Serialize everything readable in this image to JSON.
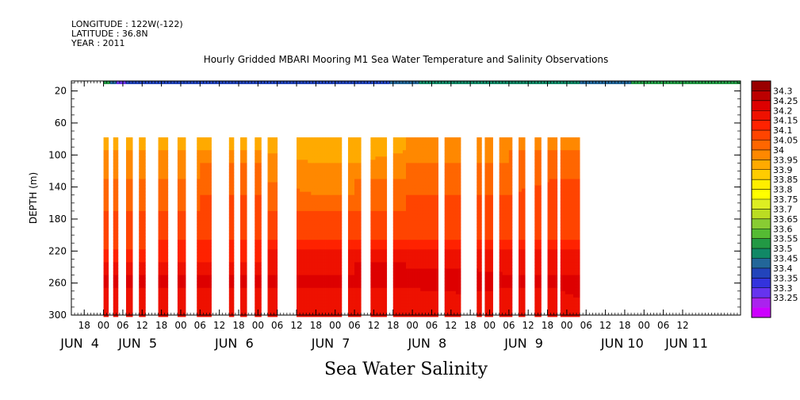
{
  "header": {
    "longitude": "LONGITUDE : 122W(-122)",
    "latitude": "LATITUDE : 36.8N",
    "year": "YEAR : 2011"
  },
  "title": "Hourly Gridded MBARI Mooring M1 Sea Water Temperature and Salinity Observations",
  "footer_title": "Sea Water Salinity",
  "chart_data": {
    "type": "heatmap",
    "title": "Hourly Gridded MBARI Mooring M1 Sea Water Temperature and Salinity Observations",
    "xlabel": "",
    "ylabel": "DEPTH (m)",
    "ylim": [
      300,
      0
    ],
    "y_ticks": [
      20,
      60,
      100,
      140,
      180,
      220,
      260,
      300
    ],
    "x_units": "hours since JUN 3 18:00",
    "xlim": [
      -4,
      204
    ],
    "x_tick_labels": [
      {
        "x": 0,
        "label": "18"
      },
      {
        "x": 6,
        "label": "00"
      },
      {
        "x": 12,
        "label": "06"
      },
      {
        "x": 18,
        "label": "12"
      },
      {
        "x": 24,
        "label": "18"
      },
      {
        "x": 30,
        "label": "00"
      },
      {
        "x": 36,
        "label": "06"
      },
      {
        "x": 42,
        "label": "12"
      },
      {
        "x": 48,
        "label": "18"
      },
      {
        "x": 54,
        "label": "00"
      },
      {
        "x": 60,
        "label": "06"
      },
      {
        "x": 66,
        "label": "12"
      },
      {
        "x": 72,
        "label": "18"
      },
      {
        "x": 78,
        "label": "00"
      },
      {
        "x": 84,
        "label": "06"
      },
      {
        "x": 90,
        "label": "12"
      },
      {
        "x": 96,
        "label": "18"
      },
      {
        "x": 102,
        "label": "00"
      },
      {
        "x": 108,
        "label": "06"
      },
      {
        "x": 114,
        "label": "12"
      },
      {
        "x": 120,
        "label": "18"
      },
      {
        "x": 126,
        "label": "00"
      },
      {
        "x": 132,
        "label": "06"
      },
      {
        "x": 138,
        "label": "12"
      },
      {
        "x": 144,
        "label": "18"
      },
      {
        "x": 150,
        "label": "00"
      },
      {
        "x": 156,
        "label": "06"
      },
      {
        "x": 162,
        "label": "12"
      },
      {
        "x": 168,
        "label": "18"
      },
      {
        "x": 174,
        "label": "00"
      },
      {
        "x": 180,
        "label": "06"
      },
      {
        "x": 186,
        "label": "12"
      }
    ],
    "day_labels": [
      {
        "x": 0,
        "label": "JUN  4"
      },
      {
        "x": 18,
        "label": "JUN  5"
      },
      {
        "x": 48,
        "label": "JUN  6"
      },
      {
        "x": 78,
        "label": "JUN  7"
      },
      {
        "x": 108,
        "label": "JUN  8"
      },
      {
        "x": 138,
        "label": "JUN  9"
      },
      {
        "x": 168,
        "label": "JUN 10"
      },
      {
        "x": 188,
        "label": "JUN 11"
      }
    ],
    "surface_band": {
      "depth_range": [
        0,
        4
      ],
      "segments": [
        {
          "x0": 6,
          "x1": 8,
          "value": 33.55
        },
        {
          "x0": 8,
          "x1": 10,
          "value": 33.45
        },
        {
          "x0": 10,
          "x1": 13,
          "value": 33.3
        },
        {
          "x0": 13,
          "x1": 95,
          "value": 33.4
        },
        {
          "x0": 95,
          "x1": 104,
          "value": 33.45
        },
        {
          "x0": 104,
          "x1": 154,
          "value": 33.5
        },
        {
          "x0": 154,
          "x1": 170,
          "value": 33.45
        },
        {
          "x0": 170,
          "x1": 204,
          "value": 33.55
        }
      ]
    },
    "data_depth_range": [
      78,
      300
    ],
    "data_segments": [
      [
        6,
        7.5
      ],
      [
        9,
        10.5
      ],
      [
        13,
        15
      ],
      [
        17,
        19
      ],
      [
        23,
        26
      ],
      [
        29,
        31.5
      ],
      [
        35,
        39.5
      ],
      [
        45,
        46.5
      ],
      [
        48.5,
        50.5
      ],
      [
        53,
        55
      ],
      [
        57,
        60
      ],
      [
        66,
        80
      ],
      [
        82,
        86
      ],
      [
        89,
        94
      ],
      [
        96,
        110
      ],
      [
        112,
        117
      ],
      [
        122,
        123.5
      ],
      [
        124.5,
        127
      ],
      [
        129,
        133
      ],
      [
        135,
        137
      ],
      [
        140,
        142
      ],
      [
        144,
        147
      ],
      [
        148,
        154
      ]
    ],
    "profile_depths": [
      80,
      95,
      110,
      130,
      150,
      170,
      190,
      205,
      220,
      235,
      250,
      265,
      280,
      300
    ],
    "profiles": [
      {
        "x": 6,
        "values": [
          34.0,
          34.0,
          34.05,
          34.05,
          34.1,
          34.1,
          34.1,
          34.1,
          34.15,
          34.2,
          34.25,
          34.25,
          34.2,
          34.2
        ]
      },
      {
        "x": 20,
        "values": [
          33.95,
          34.0,
          34.0,
          34.05,
          34.05,
          34.1,
          34.1,
          34.15,
          34.15,
          34.2,
          34.25,
          34.25,
          34.2,
          34.2
        ]
      },
      {
        "x": 36,
        "values": [
          33.95,
          34.0,
          34.05,
          34.05,
          34.1,
          34.1,
          34.1,
          34.15,
          34.15,
          34.2,
          34.25,
          34.25,
          34.2,
          34.2
        ]
      },
      {
        "x": 55,
        "values": [
          34.0,
          34.0,
          34.05,
          34.05,
          34.1,
          34.1,
          34.1,
          34.15,
          34.2,
          34.2,
          34.25,
          34.25,
          34.2,
          34.2
        ]
      },
      {
        "x": 72,
        "values": [
          33.95,
          33.95,
          34.0,
          34.0,
          34.05,
          34.1,
          34.1,
          34.15,
          34.2,
          34.2,
          34.25,
          34.25,
          34.2,
          34.2
        ]
      },
      {
        "x": 84,
        "values": [
          33.95,
          33.95,
          34.0,
          34.05,
          34.05,
          34.1,
          34.1,
          34.15,
          34.2,
          34.25,
          34.25,
          34.25,
          34.2,
          34.2
        ]
      },
      {
        "x": 100,
        "values": [
          34.0,
          34.0,
          34.05,
          34.05,
          34.1,
          34.1,
          34.1,
          34.15,
          34.2,
          34.25,
          34.25,
          34.25,
          34.2,
          34.2
        ]
      },
      {
        "x": 118,
        "values": [
          34.0,
          34.0,
          34.05,
          34.05,
          34.1,
          34.1,
          34.1,
          34.15,
          34.2,
          34.2,
          34.3,
          34.3,
          34.2,
          34.2
        ]
      },
      {
        "x": 132,
        "values": [
          34.0,
          34.05,
          34.05,
          34.05,
          34.1,
          34.1,
          34.1,
          34.15,
          34.2,
          34.2,
          34.25,
          34.25,
          34.2,
          34.2
        ]
      },
      {
        "x": 146,
        "values": [
          34.0,
          34.05,
          34.05,
          34.1,
          34.15,
          34.1,
          34.1,
          34.15,
          34.2,
          34.2,
          34.25,
          34.25,
          34.2,
          34.2
        ]
      },
      {
        "x": 154,
        "values": [
          34.05,
          34.05,
          34.05,
          34.1,
          34.1,
          34.1,
          34.15,
          34.15,
          34.2,
          34.2,
          34.25,
          34.3,
          34.25,
          34.2
        ]
      }
    ],
    "colorbar": {
      "labels": [
        "34.3",
        "34.25",
        "34.2",
        "34.15",
        "34.1",
        "34.05",
        "34",
        "33.95",
        "33.9",
        "33.85",
        "33.8",
        "33.75",
        "33.7",
        "33.65",
        "33.6",
        "33.55",
        "33.5",
        "33.45",
        "33.4",
        "33.35",
        "33.3",
        "33.25"
      ],
      "colors": [
        "#990000",
        "#bb0000",
        "#dd0000",
        "#ee1100",
        "#ff2200",
        "#ff4400",
        "#ff6600",
        "#ff8800",
        "#ffaa00",
        "#ffcc00",
        "#ffee00",
        "#ffff00",
        "#ddee22",
        "#bbdd22",
        "#88cc33",
        "#55bb33",
        "#229944",
        "#118866",
        "#226699",
        "#2244bb",
        "#3333dd",
        "#6633ee",
        "#aa22ee",
        "#cc00ff"
      ]
    },
    "grid": false,
    "legend": "right"
  }
}
